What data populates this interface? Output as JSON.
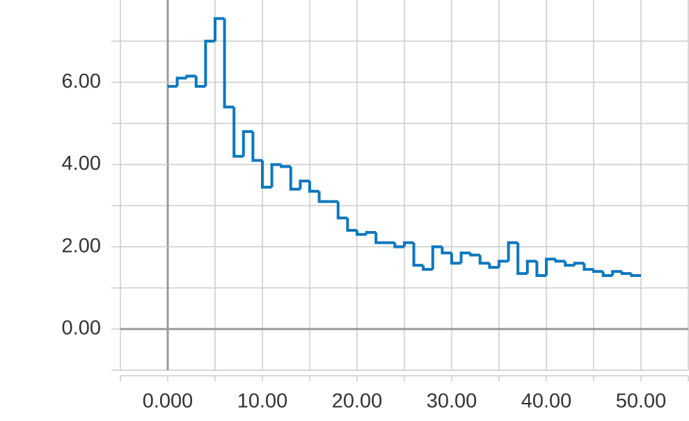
{
  "chart_data": {
    "type": "line",
    "step": true,
    "color": "#0b77bd",
    "x": [
      0,
      1,
      2,
      3,
      4,
      5,
      6,
      7,
      8,
      9,
      10,
      11,
      12,
      13,
      14,
      15,
      16,
      17,
      18,
      19,
      20,
      21,
      22,
      23,
      24,
      25,
      26,
      27,
      28,
      29,
      30,
      31,
      32,
      33,
      34,
      35,
      36,
      37,
      38,
      39,
      40,
      41,
      42,
      43,
      44,
      45,
      46,
      47,
      48,
      49,
      50
    ],
    "values": [
      5.9,
      6.1,
      6.15,
      5.9,
      7.0,
      7.55,
      5.4,
      4.2,
      4.8,
      4.1,
      3.45,
      4.0,
      3.95,
      3.4,
      3.6,
      3.35,
      3.1,
      3.1,
      2.7,
      2.4,
      2.3,
      2.35,
      2.1,
      2.1,
      2.0,
      2.1,
      1.55,
      1.45,
      2.0,
      1.85,
      1.6,
      1.85,
      1.8,
      1.6,
      1.5,
      1.65,
      2.1,
      1.35,
      1.65,
      1.3,
      1.7,
      1.65,
      1.55,
      1.6,
      1.45,
      1.4,
      1.3,
      1.4,
      1.35,
      1.3,
      1.3
    ],
    "xlim": [
      -5,
      55
    ],
    "ylim": [
      -1,
      8
    ],
    "xticks": [
      {
        "value": 0,
        "label": "0.000"
      },
      {
        "value": 10,
        "label": "10.00"
      },
      {
        "value": 20,
        "label": "20.00"
      },
      {
        "value": 30,
        "label": "30.00"
      },
      {
        "value": 40,
        "label": "40.00"
      },
      {
        "value": 50,
        "label": "50.00"
      }
    ],
    "x_minor_ticks": [
      -5,
      5,
      15,
      25,
      35,
      45,
      55
    ],
    "yticks": [
      {
        "value": 0,
        "label": "0.00"
      },
      {
        "value": 2,
        "label": "2.00"
      },
      {
        "value": 4,
        "label": "4.00"
      },
      {
        "value": 6,
        "label": "6.00"
      }
    ],
    "y_minor_ticks": [
      -1,
      1,
      3,
      5,
      7
    ],
    "grid": true
  }
}
